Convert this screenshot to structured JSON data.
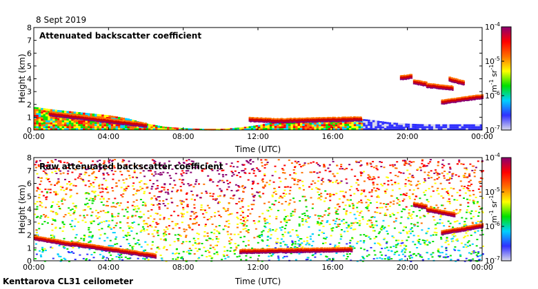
{
  "date_label": "8 Sept 2019",
  "footer_label": "Kenttarova CL31 ceilometer",
  "colors": {
    "background": "#ffffff",
    "axis": "#000000",
    "colormap": [
      "#d8d8ec",
      "#3030ff",
      "#00d0ff",
      "#00e000",
      "#ffff00",
      "#ff7000",
      "#ff0000",
      "#8a0070"
    ]
  },
  "chart_data": [
    {
      "type": "heatmap",
      "title": "Attenuated backscatter coefficient",
      "xlabel": "Time (UTC)",
      "ylabel": "Height (km)",
      "xlim": [
        0,
        24
      ],
      "ylim": [
        0,
        8
      ],
      "x_ticks": [
        "00:00",
        "04:00",
        "08:00",
        "12:00",
        "16:00",
        "20:00",
        "00:00"
      ],
      "y_ticks": [
        "0",
        "1",
        "2",
        "3",
        "4",
        "5",
        "6",
        "7",
        "8"
      ],
      "colorbar": {
        "unit_text": "m-1 sr-1",
        "unit_parts": [
          "m",
          "-1",
          " sr",
          "-1"
        ],
        "ticks": [
          {
            "base": "10",
            "exp": "-4"
          },
          {
            "base": "10",
            "exp": "-5"
          },
          {
            "base": "10",
            "exp": "-6"
          },
          {
            "base": "10",
            "exp": "-7"
          }
        ],
        "range_log10": [
          -7,
          -4
        ]
      },
      "features": {
        "surface_layer_top_km": [
          [
            0,
            1.8
          ],
          [
            1,
            1.6
          ],
          [
            2,
            1.45
          ],
          [
            3,
            1.3
          ],
          [
            4,
            1.15
          ],
          [
            5,
            0.9
          ],
          [
            6,
            0.5
          ],
          [
            7,
            0.25
          ],
          [
            8,
            0.15
          ],
          [
            9,
            0.1
          ],
          [
            10,
            0.1
          ],
          [
            11,
            0.2
          ],
          [
            12,
            0.4
          ],
          [
            13,
            0.7
          ],
          [
            14,
            0.8
          ],
          [
            15,
            0.85
          ],
          [
            16,
            1.0
          ],
          [
            17,
            0.95
          ],
          [
            18,
            0.8
          ],
          [
            19,
            0.6
          ],
          [
            20,
            0.5
          ],
          [
            21,
            0.45
          ],
          [
            22,
            0.45
          ],
          [
            23,
            0.45
          ],
          [
            24,
            0.45
          ]
        ],
        "cloud_layers": [
          {
            "t": [
              0.8,
              6.0
            ],
            "h": [
              1.3,
              0.4
            ]
          },
          {
            "t": [
              11.5,
              13.0
            ],
            "h": [
              0.85,
              0.75
            ]
          },
          {
            "t": [
              13.0,
              17.5
            ],
            "h": [
              0.75,
              0.9
            ]
          },
          {
            "t": [
              20.3,
              21.0
            ],
            "h": [
              3.8,
              3.6
            ]
          },
          {
            "t": [
              21.0,
              22.4
            ],
            "h": [
              3.5,
              3.3
            ]
          },
          {
            "t": [
              22.2,
              23.0
            ],
            "h": [
              4.0,
              3.7
            ]
          },
          {
            "t": [
              21.8,
              24.0
            ],
            "h": [
              2.2,
              2.65
            ]
          },
          {
            "t": [
              19.6,
              20.2
            ],
            "h": [
              4.1,
              4.2
            ]
          }
        ]
      }
    },
    {
      "type": "heatmap",
      "title": "Raw attenuated backscatter coefficient",
      "xlabel": "Time (UTC)",
      "ylabel": "Height (km)",
      "xlim": [
        0,
        24
      ],
      "ylim": [
        0,
        8
      ],
      "x_ticks": [
        "00:00",
        "04:00",
        "08:00",
        "12:00",
        "16:00",
        "20:00",
        "00:00"
      ],
      "y_ticks": [
        "0",
        "1",
        "2",
        "3",
        "4",
        "5",
        "6",
        "7",
        "8"
      ],
      "colorbar": {
        "unit_text": "m-1 sr-1",
        "unit_parts": [
          "m",
          "-1",
          " sr",
          "-1"
        ],
        "ticks": [
          {
            "base": "10",
            "exp": "-4"
          },
          {
            "base": "10",
            "exp": "-5"
          },
          {
            "base": "10",
            "exp": "-6"
          },
          {
            "base": "10",
            "exp": "-7"
          }
        ],
        "range_log10": [
          -7,
          -4
        ]
      },
      "features": {
        "noisy_background": true,
        "cloud_layers": [
          {
            "t": [
              0.0,
              2.0
            ],
            "h": [
              1.8,
              1.3
            ]
          },
          {
            "t": [
              2.0,
              6.5
            ],
            "h": [
              1.35,
              0.4
            ]
          },
          {
            "t": [
              11.0,
              17.0
            ],
            "h": [
              0.75,
              0.9
            ]
          },
          {
            "t": [
              20.3,
              21.0
            ],
            "h": [
              4.4,
              4.2
            ]
          },
          {
            "t": [
              21.0,
              22.5
            ],
            "h": [
              4.0,
              3.6
            ]
          },
          {
            "t": [
              21.8,
              24.0
            ],
            "h": [
              2.2,
              2.75
            ]
          }
        ]
      }
    }
  ]
}
